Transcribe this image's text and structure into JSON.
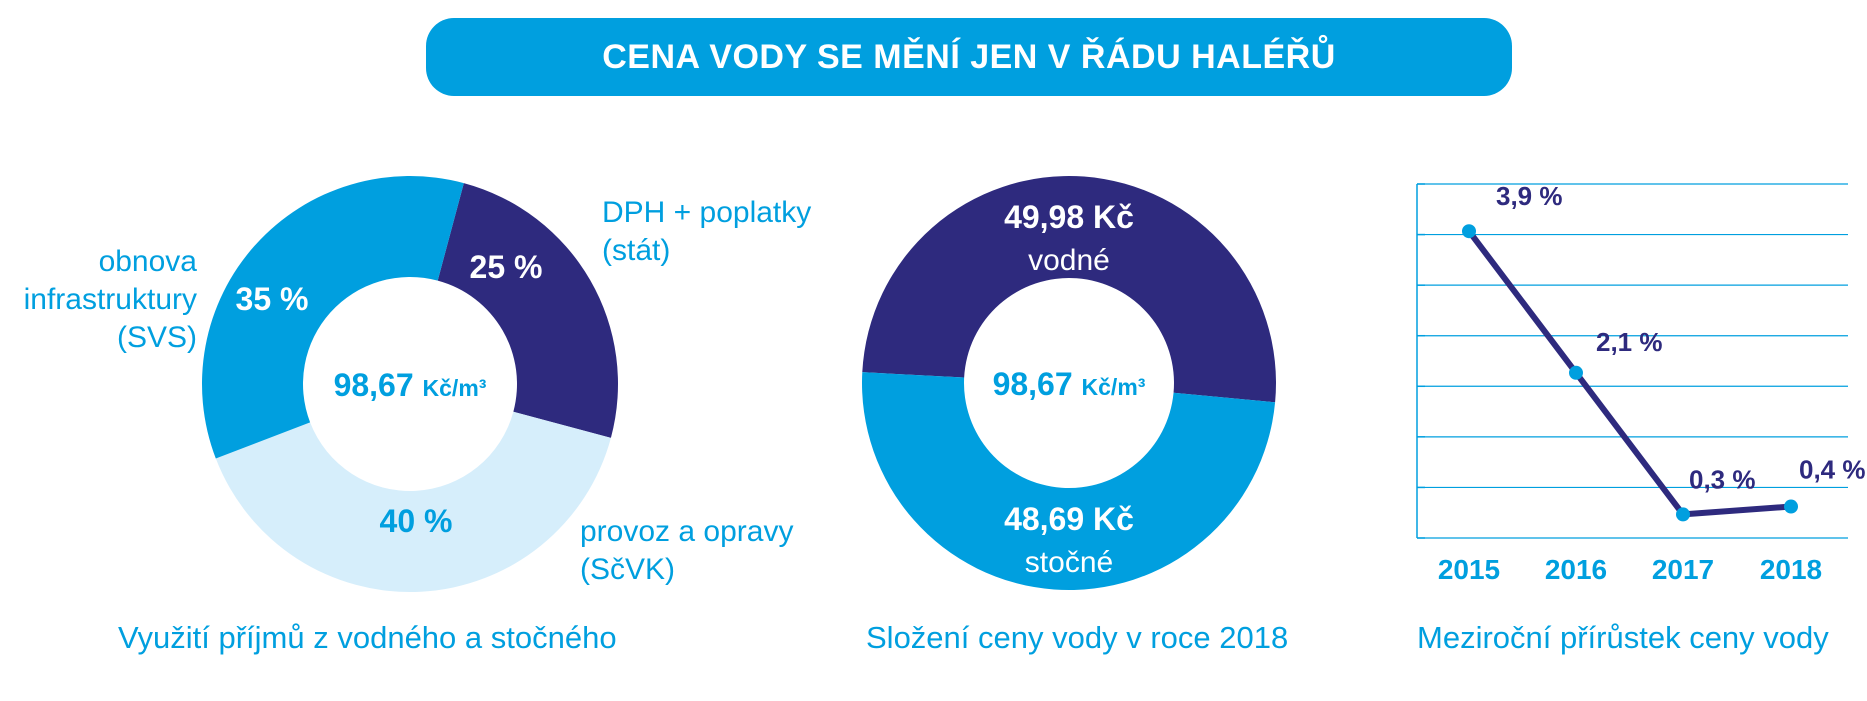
{
  "title": "CENA VODY SE MĚNÍ JEN V ŘÁDU HALÉŘŮ",
  "colors": {
    "accent": "#009fdf",
    "dark": "#2e2a7e",
    "light": "#d6eefb",
    "white": "#ffffff"
  },
  "chart_data": [
    {
      "type": "pie",
      "variant": "donut",
      "caption": "Využití příjmů z vodného a stočného",
      "center_value": "98,67",
      "center_unit": "Kč/m³",
      "slices": [
        {
          "label_lines": [
            "DPH + poplatky",
            "(stát)"
          ],
          "value": 25,
          "value_label": "25 %",
          "color": "#2e2a7e"
        },
        {
          "label_lines": [
            "provoz a opravy",
            "(SčVK)"
          ],
          "value": 40,
          "value_label": "40 %",
          "color": "#d6eefb"
        },
        {
          "label_lines": [
            "obnova",
            "infrastruktury",
            "(SVS)"
          ],
          "value": 35,
          "value_label": "35 %",
          "color": "#009fdf"
        }
      ]
    },
    {
      "type": "pie",
      "variant": "donut",
      "caption": "Složení ceny vody v roce 2018",
      "center_value": "98,67",
      "center_unit": "Kč/m³",
      "slices": [
        {
          "label": "vodné",
          "value": 49.98,
          "value_label": "49,98 Kč",
          "color": "#2e2a7e"
        },
        {
          "label": "stočné",
          "value": 48.69,
          "value_label": "48,69 Kč",
          "color": "#009fdf"
        }
      ]
    },
    {
      "type": "line",
      "caption": "Meziroční přírůstek ceny vody",
      "categories": [
        "2015",
        "2016",
        "2017",
        "2018"
      ],
      "values": [
        3.9,
        2.1,
        0.3,
        0.4
      ],
      "value_labels": [
        "3,9 %",
        "2,1 %",
        "0,3 %",
        "0,4 %"
      ],
      "ylim": [
        0,
        4.5
      ],
      "grid": true,
      "line_color": "#2e2a7e",
      "marker_color": "#009fdf"
    }
  ]
}
